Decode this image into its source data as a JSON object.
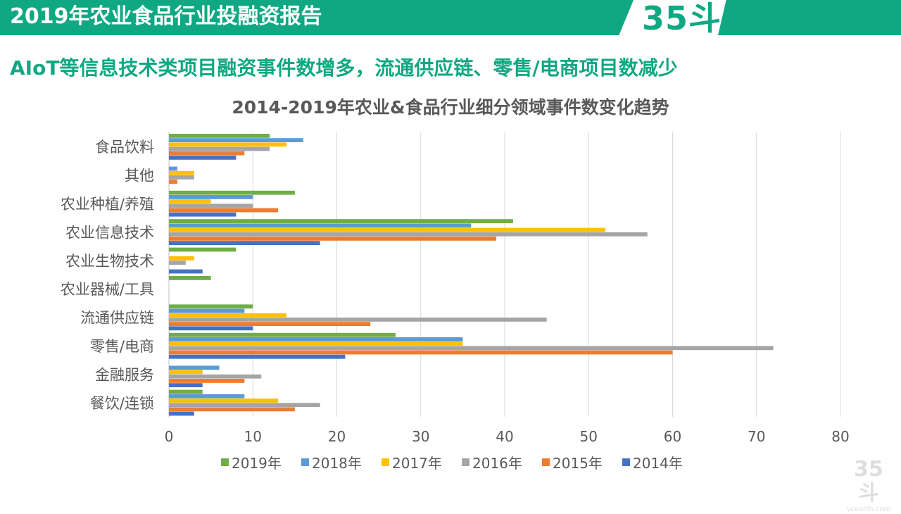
{
  "header": {
    "title": "2019年农业食品行业投融资报告",
    "logo": "35斗"
  },
  "subtitle": "AIoT等信息技术类项目融资事件数增多，流通供应链、零售/电商项目数减少",
  "watermark": {
    "logo": "35斗",
    "site": "vcearth.com"
  },
  "chart_data": {
    "type": "bar",
    "orientation": "horizontal",
    "title": "2014-2019年农业&食品行业细分领域事件数变化趋势",
    "categories": [
      "食品饮料",
      "其他",
      "农业种植/养殖",
      "农业信息技术",
      "农业生物技术",
      "农业器械/工具",
      "流通供应链",
      "零售/电商",
      "金融服务",
      "餐饮/连锁"
    ],
    "series": [
      {
        "name": "2019年",
        "color": "#70ad47",
        "values": [
          12,
          0,
          15,
          41,
          8,
          5,
          10,
          27,
          0,
          4
        ]
      },
      {
        "name": "2018年",
        "color": "#5b9bd5",
        "values": [
          16,
          1,
          10,
          36,
          0,
          0,
          9,
          35,
          6,
          9
        ]
      },
      {
        "name": "2017年",
        "color": "#ffc000",
        "values": [
          14,
          3,
          5,
          52,
          3,
          0,
          14,
          35,
          4,
          13
        ]
      },
      {
        "name": "2016年",
        "color": "#a5a5a5",
        "values": [
          12,
          3,
          10,
          57,
          2,
          0,
          45,
          72,
          11,
          18
        ]
      },
      {
        "name": "2015年",
        "color": "#ed7d31",
        "values": [
          9,
          1,
          13,
          39,
          0,
          0,
          24,
          60,
          9,
          15
        ]
      },
      {
        "name": "2014年",
        "color": "#4472c4",
        "values": [
          8,
          0,
          8,
          18,
          4,
          0,
          10,
          21,
          4,
          3
        ]
      }
    ],
    "xlim": [
      0,
      80
    ],
    "xticks": [
      0,
      10,
      20,
      30,
      40,
      50,
      60,
      70,
      80
    ],
    "grid": "vertical",
    "legend": "bottom"
  }
}
